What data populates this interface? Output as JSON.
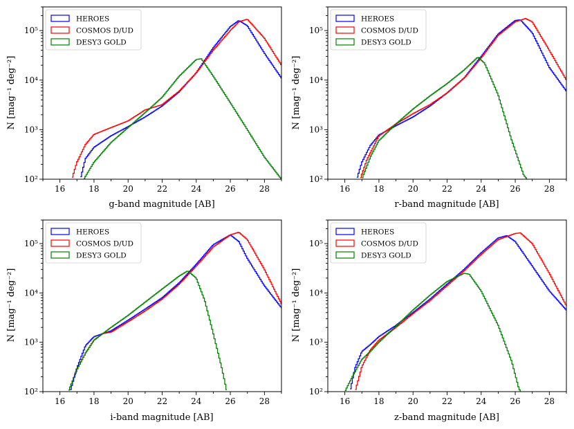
{
  "figure": {
    "panels": [
      {
        "xlabel": "g-band magnitude [AB]",
        "ylabel": "N [mag⁻¹ deg⁻²]",
        "xticks": [
          "16",
          "18",
          "20",
          "22",
          "24",
          "26",
          "28"
        ],
        "yticks": [
          "10²",
          "10³",
          "10⁴",
          "10⁵"
        ]
      },
      {
        "xlabel": "r-band magnitude [AB]",
        "ylabel": "N [mag⁻¹ deg⁻²]",
        "xticks": [
          "16",
          "18",
          "20",
          "22",
          "24",
          "26",
          "28"
        ],
        "yticks": [
          "10²",
          "10³",
          "10⁴",
          "10⁵"
        ]
      },
      {
        "xlabel": "i-band magnitude [AB]",
        "ylabel": "N [mag⁻¹ deg⁻²]",
        "xticks": [
          "16",
          "18",
          "20",
          "22",
          "24",
          "26",
          "28"
        ],
        "yticks": [
          "10²",
          "10³",
          "10⁴",
          "10⁵"
        ]
      },
      {
        "xlabel": "z-band magnitude [AB]",
        "ylabel": "N [mag⁻¹ deg⁻²]",
        "xticks": [
          "16",
          "18",
          "20",
          "22",
          "24",
          "26",
          "28"
        ],
        "yticks": [
          "10²",
          "10³",
          "10⁴",
          "10⁵"
        ]
      }
    ]
  },
  "chart_data": [
    {
      "type": "line",
      "title": "",
      "xlabel": "g-band magnitude [AB]",
      "ylabel": "N [mag^-1 deg^-2]",
      "xlim": [
        15,
        29
      ],
      "ylim": [
        100,
        300000
      ],
      "yscale": "log",
      "step": true,
      "legend": "top-left",
      "series": [
        {
          "name": "HEROES",
          "color": "#0000ff",
          "points": [
            [
              17.2,
              100
            ],
            [
              17.5,
              260
            ],
            [
              18,
              440
            ],
            [
              19,
              750
            ],
            [
              20,
              1150
            ],
            [
              21,
              1800
            ],
            [
              22,
              3000
            ],
            [
              23,
              5800
            ],
            [
              24,
              14000
            ],
            [
              25,
              45000
            ],
            [
              26,
              120000
            ],
            [
              26.5,
              160000
            ],
            [
              27,
              125000
            ],
            [
              28,
              35000
            ],
            [
              29,
              11000
            ]
          ]
        },
        {
          "name": "COSMOS D/UD",
          "color": "#ff0000",
          "points": [
            [
              16.7,
              100
            ],
            [
              17,
              220
            ],
            [
              17.5,
              500
            ],
            [
              18,
              800
            ],
            [
              19,
              1100
            ],
            [
              20,
              1500
            ],
            [
              21,
              2500
            ],
            [
              22,
              3200
            ],
            [
              23,
              6000
            ],
            [
              24,
              14000
            ],
            [
              25,
              40000
            ],
            [
              26,
              100000
            ],
            [
              26.5,
              150000
            ],
            [
              27,
              170000
            ],
            [
              28,
              70000
            ],
            [
              29,
              20000
            ]
          ]
        },
        {
          "name": "DESY3 GOLD",
          "color": "#008000",
          "points": [
            [
              17.4,
              100
            ],
            [
              18,
              220
            ],
            [
              19,
              550
            ],
            [
              20,
              1100
            ],
            [
              21,
              2200
            ],
            [
              22,
              4500
            ],
            [
              23,
              12000
            ],
            [
              24,
              26000
            ],
            [
              24.3,
              27000
            ],
            [
              25,
              12000
            ],
            [
              26,
              3500
            ],
            [
              27,
              1000
            ],
            [
              28,
              280
            ],
            [
              29,
              100
            ]
          ]
        }
      ]
    },
    {
      "type": "line",
      "title": "",
      "xlabel": "r-band magnitude [AB]",
      "ylabel": "N [mag^-1 deg^-2]",
      "xlim": [
        15,
        29
      ],
      "ylim": [
        100,
        300000
      ],
      "yscale": "log",
      "step": true,
      "legend": "top-left",
      "series": [
        {
          "name": "HEROES",
          "color": "#0000ff",
          "points": [
            [
              16.7,
              100
            ],
            [
              17,
              220
            ],
            [
              17.5,
              480
            ],
            [
              18,
              780
            ],
            [
              19,
              1200
            ],
            [
              20,
              1800
            ],
            [
              21,
              3000
            ],
            [
              22,
              5500
            ],
            [
              23,
              11000
            ],
            [
              24,
              30000
            ],
            [
              25,
              85000
            ],
            [
              26,
              160000
            ],
            [
              26.3,
              165000
            ],
            [
              27,
              90000
            ],
            [
              28,
              18000
            ],
            [
              29,
              6000
            ]
          ]
        },
        {
          "name": "COSMOS D/UD",
          "color": "#ff0000",
          "points": [
            [
              16.9,
              100
            ],
            [
              17.3,
              250
            ],
            [
              18,
              750
            ],
            [
              19,
              1300
            ],
            [
              20,
              2100
            ],
            [
              21,
              3200
            ],
            [
              22,
              5500
            ],
            [
              23,
              11000
            ],
            [
              24,
              28000
            ],
            [
              25,
              80000
            ],
            [
              26,
              150000
            ],
            [
              26.6,
              175000
            ],
            [
              27,
              150000
            ],
            [
              28,
              40000
            ],
            [
              29,
              10000
            ]
          ]
        },
        {
          "name": "DESY3 GOLD",
          "color": "#008000",
          "points": [
            [
              17,
              100
            ],
            [
              17.5,
              280
            ],
            [
              18,
              600
            ],
            [
              19,
              1300
            ],
            [
              20,
              2600
            ],
            [
              21,
              4800
            ],
            [
              22,
              8500
            ],
            [
              23,
              16000
            ],
            [
              23.8,
              29000
            ],
            [
              24.2,
              22000
            ],
            [
              25,
              5000
            ],
            [
              25.8,
              600
            ],
            [
              26.5,
              120
            ],
            [
              26.7,
              100
            ]
          ]
        }
      ]
    },
    {
      "type": "line",
      "title": "",
      "xlabel": "i-band magnitude [AB]",
      "ylabel": "N [mag^-1 deg^-2]",
      "xlim": [
        15,
        29
      ],
      "ylim": [
        100,
        300000
      ],
      "yscale": "log",
      "step": true,
      "legend": "top-left",
      "series": [
        {
          "name": "HEROES",
          "color": "#0000ff",
          "points": [
            [
              16.6,
              100
            ],
            [
              17,
              300
            ],
            [
              17.5,
              850
            ],
            [
              18,
              1300
            ],
            [
              19,
              1700
            ],
            [
              20,
              2800
            ],
            [
              21,
              4700
            ],
            [
              22,
              8000
            ],
            [
              23,
              16000
            ],
            [
              24,
              38000
            ],
            [
              25,
              95000
            ],
            [
              26,
              150000
            ],
            [
              26.5,
              110000
            ],
            [
              27,
              50000
            ],
            [
              28,
              14000
            ],
            [
              29,
              5000
            ]
          ]
        },
        {
          "name": "COSMOS D/UD",
          "color": "#ff0000",
          "points": [
            [
              16.5,
              100
            ],
            [
              17,
              280
            ],
            [
              17.5,
              600
            ],
            [
              18,
              1100
            ],
            [
              18.5,
              1500
            ],
            [
              19,
              1600
            ],
            [
              20,
              2600
            ],
            [
              21,
              4300
            ],
            [
              22,
              7500
            ],
            [
              23,
              15000
            ],
            [
              24,
              35000
            ],
            [
              25,
              85000
            ],
            [
              26,
              150000
            ],
            [
              26.5,
              170000
            ],
            [
              27,
              120000
            ],
            [
              28,
              30000
            ],
            [
              29,
              6000
            ]
          ]
        },
        {
          "name": "DESY3 GOLD",
          "color": "#008000",
          "points": [
            [
              16.5,
              100
            ],
            [
              17,
              280
            ],
            [
              17.5,
              600
            ],
            [
              18,
              1100
            ],
            [
              19,
              2000
            ],
            [
              20,
              3500
            ],
            [
              21,
              6500
            ],
            [
              22,
              12000
            ],
            [
              23,
              22000
            ],
            [
              23.5,
              28000
            ],
            [
              24,
              20000
            ],
            [
              24.5,
              7000
            ],
            [
              25,
              1500
            ],
            [
              25.5,
              300
            ],
            [
              25.8,
              100
            ]
          ]
        }
      ]
    },
    {
      "type": "line",
      "title": "",
      "xlabel": "z-band magnitude [AB]",
      "ylabel": "N [mag^-1 deg^-2]",
      "xlim": [
        15,
        29
      ],
      "ylim": [
        100,
        300000
      ],
      "yscale": "log",
      "step": true,
      "legend": "top-left",
      "series": [
        {
          "name": "HEROES",
          "color": "#0000ff",
          "points": [
            [
              16.3,
              100
            ],
            [
              16.6,
              300
            ],
            [
              17,
              650
            ],
            [
              17.5,
              900
            ],
            [
              18,
              1300
            ],
            [
              19,
              2200
            ],
            [
              20,
              4000
            ],
            [
              21,
              7500
            ],
            [
              22,
              15000
            ],
            [
              23,
              30000
            ],
            [
              24,
              65000
            ],
            [
              25,
              130000
            ],
            [
              25.5,
              145000
            ],
            [
              26,
              110000
            ],
            [
              27,
              35000
            ],
            [
              28,
              11000
            ],
            [
              29,
              4500
            ]
          ]
        },
        {
          "name": "COSMOS D/UD",
          "color": "#ff0000",
          "points": [
            [
              16.6,
              100
            ],
            [
              17,
              320
            ],
            [
              17.5,
              700
            ],
            [
              18,
              1100
            ],
            [
              19,
              2000
            ],
            [
              20,
              3800
            ],
            [
              21,
              7000
            ],
            [
              22,
              14000
            ],
            [
              23,
              28000
            ],
            [
              24,
              60000
            ],
            [
              25,
              120000
            ],
            [
              26,
              160000
            ],
            [
              26.3,
              165000
            ],
            [
              27,
              100000
            ],
            [
              28,
              25000
            ],
            [
              29,
              5500
            ]
          ]
        },
        {
          "name": "DESY3 GOLD",
          "color": "#008000",
          "points": [
            [
              16,
              100
            ],
            [
              16.5,
              220
            ],
            [
              17,
              450
            ],
            [
              17.5,
              650
            ],
            [
              18,
              1000
            ],
            [
              19,
              2100
            ],
            [
              20,
              4500
            ],
            [
              21,
              9000
            ],
            [
              22,
              17000
            ],
            [
              23,
              25000
            ],
            [
              23.3,
              24000
            ],
            [
              24,
              11000
            ],
            [
              25,
              2200
            ],
            [
              25.8,
              400
            ],
            [
              26.2,
              120
            ],
            [
              26.3,
              100
            ]
          ]
        }
      ]
    }
  ]
}
